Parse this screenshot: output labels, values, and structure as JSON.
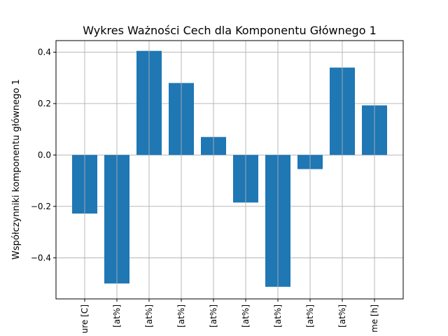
{
  "chart_data": {
    "type": "bar",
    "title": "Wykres Ważności Cech dla Komponentu Głównego 1",
    "xlabel": "",
    "ylabel": "Współczynniki komponentu głównego 1",
    "categories": [
      "ure [C]",
      "[at%]",
      "[at%]",
      "[at%]",
      "[at%]",
      "[at%]",
      "[at%]",
      "[at%]",
      "[at%]",
      "me [h]"
    ],
    "values": [
      -0.228,
      -0.5,
      0.405,
      0.28,
      0.07,
      -0.185,
      -0.513,
      -0.055,
      0.34,
      0.193
    ],
    "ylim": [
      -0.56,
      0.445
    ],
    "yticks": [
      -0.4,
      -0.2,
      0.0,
      0.2,
      0.4
    ],
    "ytick_labels": [
      "−0.4",
      "−0.2",
      "0.0",
      "0.2",
      "0.4"
    ],
    "grid": true,
    "bar_color": "#1f77b4"
  }
}
